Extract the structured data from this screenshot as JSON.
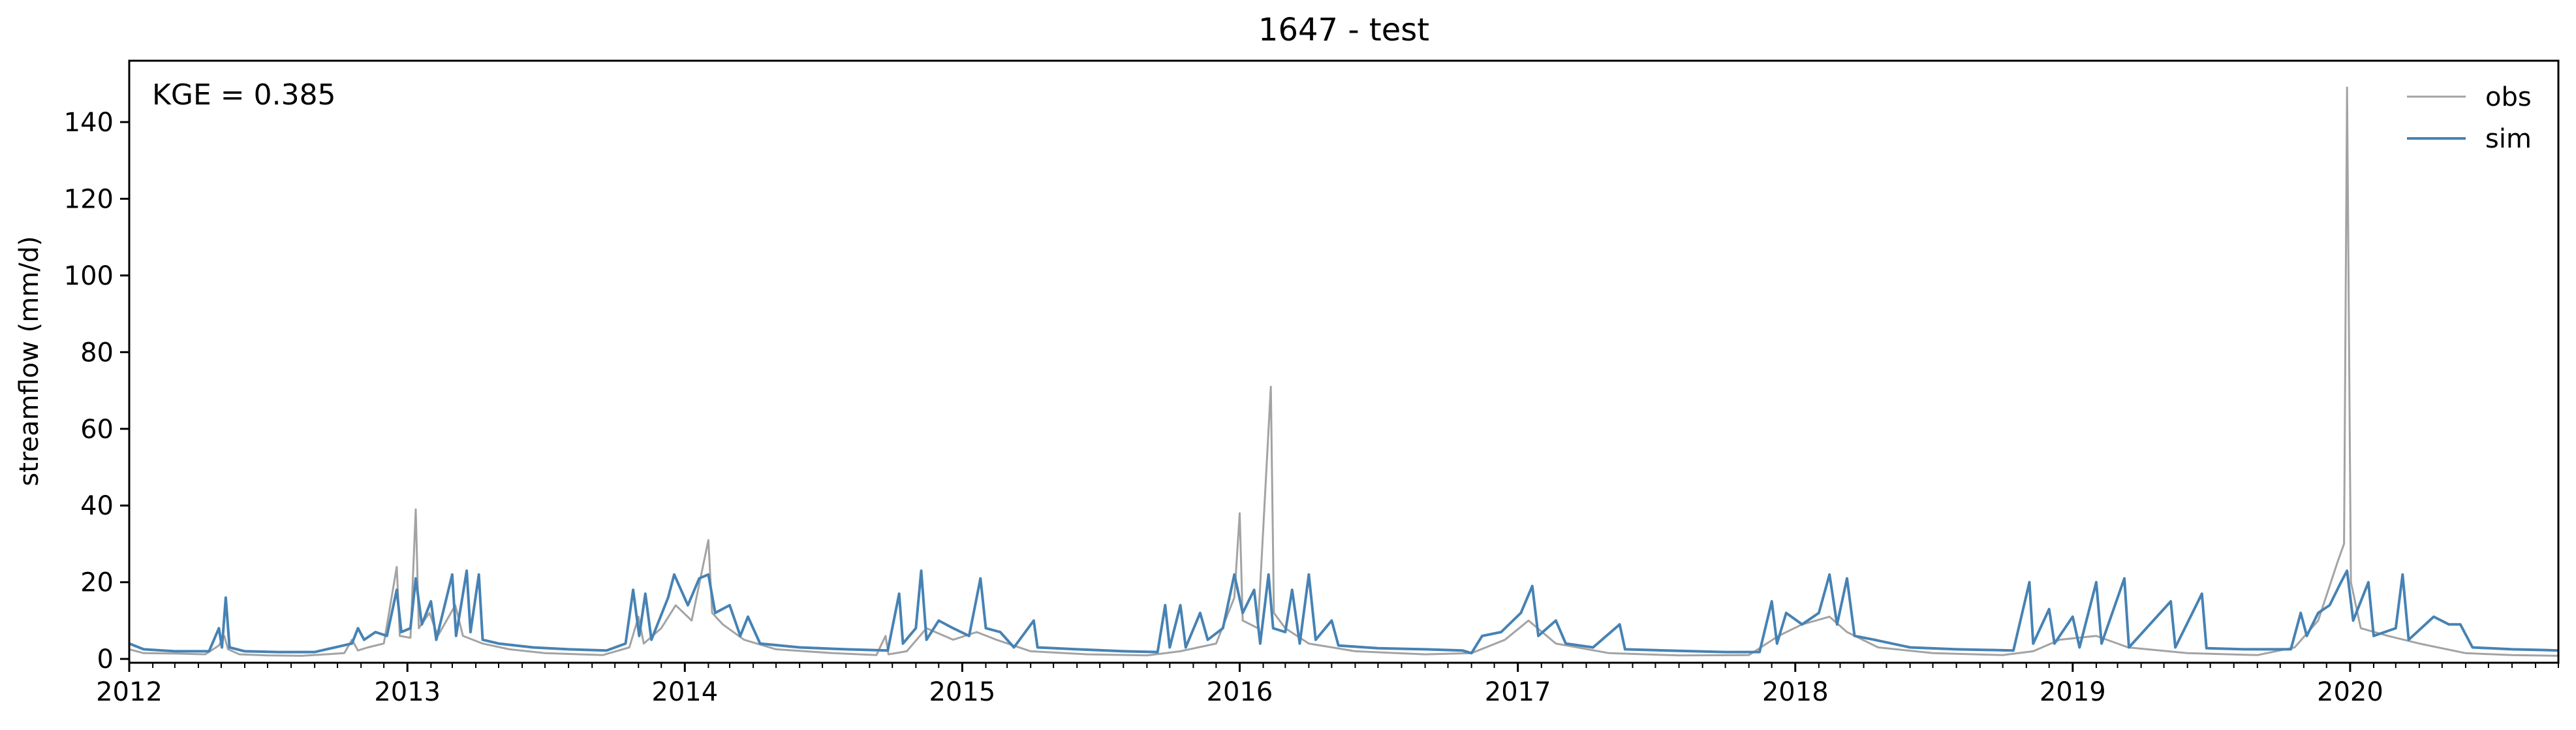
{
  "chart_data": {
    "type": "line",
    "title": "1647 - test",
    "xlabel": "",
    "ylabel": "streamflow (mm/d)",
    "annotation": "KGE = 0.385",
    "x_range": [
      "2012-01-01",
      "2020-10-01"
    ],
    "ylim": [
      -1,
      156
    ],
    "x_ticks": [
      "2012",
      "2013",
      "2014",
      "2015",
      "2016",
      "2017",
      "2018",
      "2019",
      "2020"
    ],
    "y_ticks": [
      0,
      20,
      40,
      60,
      80,
      100,
      120,
      140
    ],
    "grid": false,
    "legend_position": "top-right",
    "series": [
      {
        "name": "obs",
        "color": "#a3a3a3",
        "points": [
          [
            "2012-01-01",
            2.5
          ],
          [
            "2012-01-20",
            1.5
          ],
          [
            "2012-03-01",
            1.4
          ],
          [
            "2012-04-10",
            1.2
          ],
          [
            "2012-04-28",
            3.5
          ],
          [
            "2012-05-05",
            6.0
          ],
          [
            "2012-05-10",
            2.5
          ],
          [
            "2012-05-25",
            1.2
          ],
          [
            "2012-07-01",
            0.9
          ],
          [
            "2012-08-15",
            0.8
          ],
          [
            "2012-10-10",
            1.5
          ],
          [
            "2012-10-20",
            5.0
          ],
          [
            "2012-10-28",
            2.2
          ],
          [
            "2012-11-10",
            3.0
          ],
          [
            "2012-12-01",
            4.0
          ],
          [
            "2012-12-18",
            24.0
          ],
          [
            "2012-12-22",
            6.0
          ],
          [
            "2013-01-05",
            5.5
          ],
          [
            "2013-01-12",
            39.0
          ],
          [
            "2013-01-16",
            8.0
          ],
          [
            "2013-01-30",
            12.0
          ],
          [
            "2013-02-10",
            6.0
          ],
          [
            "2013-03-05",
            14.0
          ],
          [
            "2013-03-15",
            6.0
          ],
          [
            "2013-04-10",
            4.0
          ],
          [
            "2013-05-15",
            2.5
          ],
          [
            "2013-07-01",
            1.5
          ],
          [
            "2013-09-15",
            1.0
          ],
          [
            "2013-10-20",
            3.0
          ],
          [
            "2013-11-01",
            11.0
          ],
          [
            "2013-11-08",
            4.0
          ],
          [
            "2013-12-01",
            8.0
          ],
          [
            "2013-12-20",
            14.0
          ],
          [
            "2014-01-10",
            10.0
          ],
          [
            "2014-02-01",
            31.0
          ],
          [
            "2014-02-06",
            12.0
          ],
          [
            "2014-02-20",
            9.0
          ],
          [
            "2014-03-20",
            5.0
          ],
          [
            "2014-05-01",
            2.5
          ],
          [
            "2014-07-15",
            1.5
          ],
          [
            "2014-09-10",
            1.0
          ],
          [
            "2014-09-22",
            6.0
          ],
          [
            "2014-09-26",
            1.2
          ],
          [
            "2014-10-20",
            2.0
          ],
          [
            "2014-11-15",
            8.0
          ],
          [
            "2014-12-20",
            5.0
          ],
          [
            "2015-01-20",
            7.0
          ],
          [
            "2015-02-15",
            5.0
          ],
          [
            "2015-04-01",
            2.0
          ],
          [
            "2015-06-15",
            1.2
          ],
          [
            "2015-09-01",
            0.9
          ],
          [
            "2015-10-15",
            2.0
          ],
          [
            "2015-12-01",
            4.0
          ],
          [
            "2015-12-25",
            16.0
          ],
          [
            "2016-01-01",
            38.0
          ],
          [
            "2016-01-05",
            10.0
          ],
          [
            "2016-01-25",
            8.0
          ],
          [
            "2016-02-11",
            71.0
          ],
          [
            "2016-02-15",
            12.0
          ],
          [
            "2016-03-01",
            8.0
          ],
          [
            "2016-04-01",
            4.0
          ],
          [
            "2016-06-01",
            2.0
          ],
          [
            "2016-09-01",
            1.2
          ],
          [
            "2016-11-01",
            1.5
          ],
          [
            "2016-12-15",
            5.0
          ],
          [
            "2017-01-15",
            10.0
          ],
          [
            "2017-02-20",
            4.0
          ],
          [
            "2017-05-01",
            1.5
          ],
          [
            "2017-08-01",
            0.9
          ],
          [
            "2017-11-01",
            1.0
          ],
          [
            "2017-12-10",
            6.0
          ],
          [
            "2018-01-10",
            9.0
          ],
          [
            "2018-02-15",
            11.0
          ],
          [
            "2018-03-10",
            7.0
          ],
          [
            "2018-04-20",
            3.0
          ],
          [
            "2018-07-01",
            1.5
          ],
          [
            "2018-10-01",
            1.0
          ],
          [
            "2018-11-10",
            2.0
          ],
          [
            "2018-12-15",
            5.0
          ],
          [
            "2019-02-01",
            6.0
          ],
          [
            "2019-03-15",
            3.0
          ],
          [
            "2019-06-01",
            1.5
          ],
          [
            "2019-09-01",
            1.0
          ],
          [
            "2019-10-20",
            3.0
          ],
          [
            "2019-11-20",
            10.0
          ],
          [
            "2019-12-15",
            25.0
          ],
          [
            "2019-12-24",
            30.0
          ],
          [
            "2019-12-28",
            149.0
          ],
          [
            "2020-01-02",
            20.0
          ],
          [
            "2020-01-15",
            8.0
          ],
          [
            "2020-02-20",
            6.0
          ],
          [
            "2020-04-01",
            4.0
          ],
          [
            "2020-06-01",
            1.5
          ],
          [
            "2020-08-01",
            1.0
          ],
          [
            "2020-10-01",
            0.8
          ]
        ]
      },
      {
        "name": "sim",
        "color": "#4682b4",
        "points": [
          [
            "2012-01-01",
            4.0
          ],
          [
            "2012-01-20",
            2.5
          ],
          [
            "2012-03-01",
            2.0
          ],
          [
            "2012-04-15",
            2.0
          ],
          [
            "2012-04-28",
            8.0
          ],
          [
            "2012-05-02",
            3.0
          ],
          [
            "2012-05-07",
            16.0
          ],
          [
            "2012-05-12",
            3.0
          ],
          [
            "2012-06-01",
            2.0
          ],
          [
            "2012-07-15",
            1.8
          ],
          [
            "2012-09-01",
            1.8
          ],
          [
            "2012-10-20",
            4.0
          ],
          [
            "2012-10-28",
            8.0
          ],
          [
            "2012-11-05",
            5.0
          ],
          [
            "2012-11-20",
            7.0
          ],
          [
            "2012-12-05",
            6.0
          ],
          [
            "2012-12-18",
            18.0
          ],
          [
            "2012-12-24",
            7.0
          ],
          [
            "2013-01-05",
            8.0
          ],
          [
            "2013-01-12",
            21.0
          ],
          [
            "2013-01-20",
            9.0
          ],
          [
            "2013-02-01",
            15.0
          ],
          [
            "2013-02-08",
            5.0
          ],
          [
            "2013-03-01",
            22.0
          ],
          [
            "2013-03-06",
            6.0
          ],
          [
            "2013-03-20",
            23.0
          ],
          [
            "2013-03-25",
            7.0
          ],
          [
            "2013-04-05",
            22.0
          ],
          [
            "2013-04-10",
            5.0
          ],
          [
            "2013-05-01",
            4.0
          ],
          [
            "2013-06-15",
            3.0
          ],
          [
            "2013-08-01",
            2.5
          ],
          [
            "2013-09-20",
            2.2
          ],
          [
            "2013-10-15",
            4.0
          ],
          [
            "2013-10-25",
            18.0
          ],
          [
            "2013-11-02",
            6.0
          ],
          [
            "2013-11-10",
            17.0
          ],
          [
            "2013-11-18",
            5.0
          ],
          [
            "2013-12-10",
            16.0
          ],
          [
            "2013-12-18",
            22.0
          ],
          [
            "2014-01-05",
            14.0
          ],
          [
            "2014-01-20",
            21.0
          ],
          [
            "2014-02-01",
            22.0
          ],
          [
            "2014-02-10",
            12.0
          ],
          [
            "2014-03-01",
            14.0
          ],
          [
            "2014-03-15",
            6.0
          ],
          [
            "2014-03-25",
            11.0
          ],
          [
            "2014-04-10",
            4.0
          ],
          [
            "2014-06-01",
            3.0
          ],
          [
            "2014-08-01",
            2.5
          ],
          [
            "2014-09-25",
            2.2
          ],
          [
            "2014-10-10",
            17.0
          ],
          [
            "2014-10-15",
            4.0
          ],
          [
            "2014-11-01",
            8.0
          ],
          [
            "2014-11-08",
            23.0
          ],
          [
            "2014-11-15",
            5.0
          ],
          [
            "2014-12-01",
            10.0
          ],
          [
            "2014-12-20",
            8.0
          ],
          [
            "2015-01-10",
            6.0
          ],
          [
            "2015-01-25",
            21.0
          ],
          [
            "2015-02-01",
            8.0
          ],
          [
            "2015-02-20",
            7.0
          ],
          [
            "2015-03-10",
            3.0
          ],
          [
            "2015-04-05",
            10.0
          ],
          [
            "2015-04-10",
            3.0
          ],
          [
            "2015-06-01",
            2.5
          ],
          [
            "2015-08-01",
            2.0
          ],
          [
            "2015-09-15",
            1.8
          ],
          [
            "2015-09-25",
            14.0
          ],
          [
            "2015-10-01",
            3.0
          ],
          [
            "2015-10-15",
            14.0
          ],
          [
            "2015-10-22",
            3.0
          ],
          [
            "2015-11-10",
            12.0
          ],
          [
            "2015-11-20",
            5.0
          ],
          [
            "2015-12-10",
            8.0
          ],
          [
            "2015-12-25",
            22.0
          ],
          [
            "2016-01-05",
            12.0
          ],
          [
            "2016-01-20",
            18.0
          ],
          [
            "2016-01-28",
            4.0
          ],
          [
            "2016-02-08",
            22.0
          ],
          [
            "2016-02-14",
            8.0
          ],
          [
            "2016-03-01",
            7.0
          ],
          [
            "2016-03-10",
            18.0
          ],
          [
            "2016-03-20",
            4.0
          ],
          [
            "2016-04-01",
            22.0
          ],
          [
            "2016-04-10",
            5.0
          ],
          [
            "2016-05-01",
            10.0
          ],
          [
            "2016-05-10",
            3.5
          ],
          [
            "2016-07-01",
            2.8
          ],
          [
            "2016-09-01",
            2.5
          ],
          [
            "2016-10-20",
            2.2
          ],
          [
            "2016-11-01",
            1.5
          ],
          [
            "2016-11-15",
            6.0
          ],
          [
            "2016-12-10",
            7.0
          ],
          [
            "2017-01-05",
            12.0
          ],
          [
            "2017-01-20",
            19.0
          ],
          [
            "2017-01-28",
            6.0
          ],
          [
            "2017-02-20",
            10.0
          ],
          [
            "2017-03-05",
            4.0
          ],
          [
            "2017-04-10",
            3.0
          ],
          [
            "2017-05-15",
            9.0
          ],
          [
            "2017-05-22",
            2.5
          ],
          [
            "2017-07-15",
            2.2
          ],
          [
            "2017-10-01",
            1.8
          ],
          [
            "2017-11-15",
            1.8
          ],
          [
            "2017-12-01",
            15.0
          ],
          [
            "2017-12-08",
            4.0
          ],
          [
            "2017-12-20",
            12.0
          ],
          [
            "2018-01-10",
            9.0
          ],
          [
            "2018-02-01",
            12.0
          ],
          [
            "2018-02-15",
            22.0
          ],
          [
            "2018-02-25",
            9.0
          ],
          [
            "2018-03-10",
            21.0
          ],
          [
            "2018-03-20",
            6.0
          ],
          [
            "2018-04-15",
            5.0
          ],
          [
            "2018-06-01",
            3.0
          ],
          [
            "2018-08-01",
            2.5
          ],
          [
            "2018-10-15",
            2.2
          ],
          [
            "2018-11-05",
            20.0
          ],
          [
            "2018-11-10",
            4.0
          ],
          [
            "2018-12-01",
            13.0
          ],
          [
            "2018-12-08",
            4.0
          ],
          [
            "2019-01-01",
            11.0
          ],
          [
            "2019-01-10",
            3.0
          ],
          [
            "2019-02-01",
            20.0
          ],
          [
            "2019-02-08",
            4.0
          ],
          [
            "2019-03-10",
            21.0
          ],
          [
            "2019-03-16",
            3.0
          ],
          [
            "2019-05-10",
            15.0
          ],
          [
            "2019-05-16",
            3.0
          ],
          [
            "2019-06-20",
            17.0
          ],
          [
            "2019-06-26",
            2.8
          ],
          [
            "2019-08-15",
            2.5
          ],
          [
            "2019-10-15",
            2.5
          ],
          [
            "2019-10-28",
            12.0
          ],
          [
            "2019-11-05",
            6.0
          ],
          [
            "2019-11-20",
            12.0
          ],
          [
            "2019-12-05",
            14.0
          ],
          [
            "2019-12-20",
            20.0
          ],
          [
            "2019-12-28",
            23.0
          ],
          [
            "2020-01-05",
            10.0
          ],
          [
            "2020-01-25",
            20.0
          ],
          [
            "2020-02-01",
            6.0
          ],
          [
            "2020-03-01",
            8.0
          ],
          [
            "2020-03-10",
            22.0
          ],
          [
            "2020-03-18",
            5.0
          ],
          [
            "2020-04-20",
            11.0
          ],
          [
            "2020-05-10",
            9.0
          ],
          [
            "2020-05-25",
            9.0
          ],
          [
            "2020-06-10",
            3.0
          ],
          [
            "2020-08-01",
            2.5
          ],
          [
            "2020-09-15",
            2.3
          ],
          [
            "2020-10-01",
            2.2
          ]
        ]
      }
    ]
  }
}
